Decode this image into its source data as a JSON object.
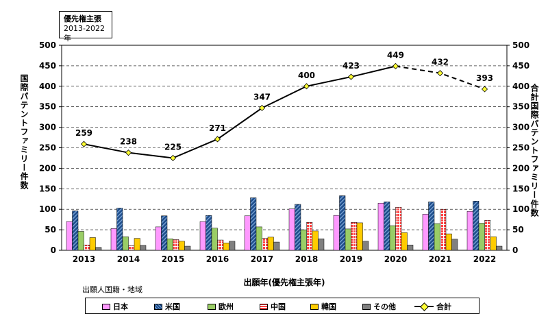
{
  "info_box": {
    "line1": "優先権主張",
    "line2": "2013-2022年"
  },
  "colors": {
    "japan": "#ff99ff",
    "usa": "#1f4e8c",
    "europe": "#9acd66",
    "china": "#ff4444",
    "korea": "#ffcc00",
    "other": "#808080",
    "total": "#ffff33"
  },
  "legend_caption": "出願人国籍・地域",
  "chart_data": {
    "type": "bar",
    "xlabel": "出願年(優先権主張年)",
    "ylabel_left": "国際パテントファミリー件数",
    "ylabel_right": "合計国際パテントファミリー件数",
    "categories": [
      "2013",
      "2014",
      "2015",
      "2016",
      "2017",
      "2018",
      "2019",
      "2020",
      "2021",
      "2022"
    ],
    "ylim": [
      0,
      500
    ],
    "y_ticks": [
      0,
      50,
      100,
      150,
      200,
      250,
      300,
      350,
      400,
      450,
      500
    ],
    "grid": "horizontal, dashed",
    "legend_position": "bottom",
    "series": [
      {
        "name": "日本",
        "values": [
          70,
          53,
          57,
          70,
          84,
          101,
          85,
          115,
          88,
          95
        ]
      },
      {
        "name": "米国",
        "values": [
          96,
          103,
          84,
          85,
          128,
          112,
          133,
          118,
          118,
          120
        ]
      },
      {
        "name": "欧州",
        "values": [
          46,
          33,
          28,
          54,
          57,
          50,
          52,
          60,
          65,
          66
        ]
      },
      {
        "name": "中国",
        "values": [
          13,
          11,
          26,
          25,
          29,
          68,
          68,
          105,
          100,
          73
        ]
      },
      {
        "name": "韓国",
        "values": [
          31,
          29,
          22,
          18,
          32,
          47,
          67,
          43,
          40,
          33
        ]
      },
      {
        "name": "その他",
        "values": [
          7,
          12,
          10,
          22,
          20,
          28,
          22,
          13,
          27,
          10
        ]
      }
    ],
    "total_series": {
      "name": "合計",
      "values": [
        259,
        238,
        225,
        271,
        347,
        400,
        423,
        449,
        432,
        393
      ],
      "dashed_from_index": 7
    }
  }
}
